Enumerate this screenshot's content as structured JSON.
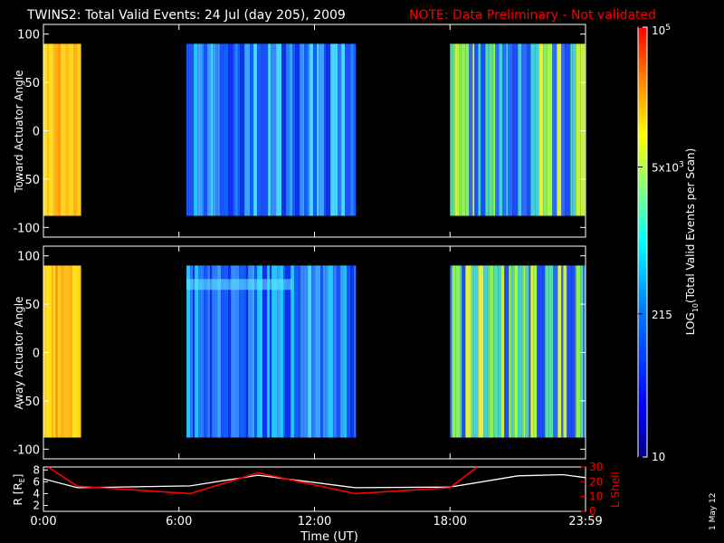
{
  "title": {
    "main": "TWINS2: Total Valid Events: 24 Jul (day 205), 2009",
    "note": "NOTE: Data Preliminary - Not validated"
  },
  "footer_date": "1 May 12",
  "colors": {
    "background": "#000000",
    "axes": "#ffffff",
    "note": "#ff0000",
    "r_line": "#ffffff",
    "l_line": "#ff0000"
  },
  "chart_data": [
    {
      "type": "heatmap",
      "panel": "top",
      "ylabel": "Toward Actuator Angle",
      "ylim": [
        -110,
        110
      ],
      "yticks": [
        100,
        50,
        0,
        -50,
        -100
      ],
      "y_extent": [
        -88,
        90
      ],
      "colorscale": "log-rainbow",
      "intervals": [
        {
          "start": "00:00",
          "end": "01:40",
          "level": "high"
        },
        {
          "start": "06:20",
          "end": "13:50",
          "level": "low"
        },
        {
          "start": "18:00",
          "end": "23:59",
          "level": "medium"
        }
      ],
      "legend": "none"
    },
    {
      "type": "heatmap",
      "panel": "bottom",
      "ylabel": "Away Actuator Angle",
      "ylim": [
        -110,
        110
      ],
      "yticks": [
        100,
        50,
        0,
        -50,
        -100
      ],
      "y_extent": [
        -88,
        90
      ],
      "colorscale": "log-rainbow",
      "intervals": [
        {
          "start": "00:00",
          "end": "01:40",
          "level": "high"
        },
        {
          "start": "06:20",
          "end": "13:50",
          "level": "low"
        },
        {
          "start": "18:00",
          "end": "23:59",
          "level": "medium"
        }
      ],
      "legend": "none"
    },
    {
      "type": "line",
      "panel": "ephemeris",
      "xlabel": "Time (UT)",
      "xticks": [
        "0:00",
        "6:00",
        "12:00",
        "18:00",
        "23:59"
      ],
      "ylabel": "R [R",
      "ylabel_sub": "E",
      "ylabel_close": "]",
      "ylim": [
        1,
        8.5
      ],
      "yticks": [
        8,
        6,
        4,
        2
      ],
      "y2label": "L Shell",
      "y2lim": [
        0,
        30
      ],
      "y2ticks": [
        30,
        20,
        10,
        0
      ],
      "series": [
        {
          "name": "R",
          "axis": "left",
          "x": [
            0,
            1.5,
            6.5,
            9.5,
            13.8,
            18,
            21,
            23,
            24
          ],
          "values": [
            6.5,
            5.0,
            5.3,
            7.1,
            5.0,
            5.1,
            7.0,
            7.2,
            6.7
          ]
        },
        {
          "name": "L Shell",
          "axis": "right",
          "x": [
            0.2,
            1.5,
            6.5,
            9.5,
            13.8,
            18,
            19.2
          ],
          "values": [
            30,
            17,
            12,
            26,
            12,
            16,
            30
          ]
        }
      ]
    },
    {
      "type": "heatmap",
      "panel": "colorbar",
      "ylabel": "LOG",
      "ylabel_sub": "10",
      "ylabel_rest": "(Total Valid Events per Scan)",
      "ticks": [
        {
          "label": "10",
          "value": 10
        },
        {
          "label": "215",
          "value": 215
        },
        {
          "label": "5x10",
          "sup": "3",
          "value": 5000
        },
        {
          "label": "10",
          "sup": "5",
          "value": 100000
        }
      ],
      "range": [
        10,
        100000
      ]
    }
  ]
}
